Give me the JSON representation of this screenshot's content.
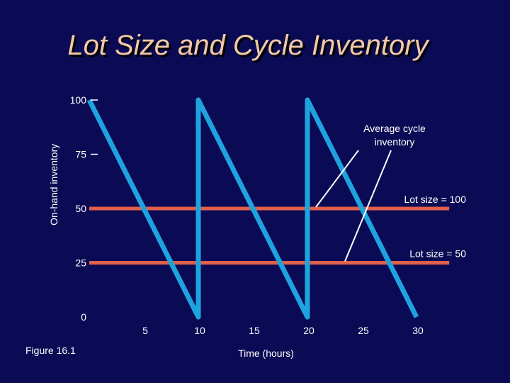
{
  "slide": {
    "title": "Lot Size and Cycle Inventory",
    "figure_label": "Figure 16.1"
  },
  "colors": {
    "background": "#0b0b55",
    "title": "#f3c9a6",
    "sawtooth": "#1ea3df",
    "average_line": "#e0604a",
    "text": "#ffffff"
  },
  "chart_data": {
    "type": "line",
    "xlabel": "Time (hours)",
    "ylabel": "On-hand inventory",
    "xlim": [
      0,
      33
    ],
    "ylim": [
      0,
      100
    ],
    "x_ticks": [
      5,
      10,
      15,
      20,
      25,
      30
    ],
    "y_ticks": [
      0,
      25,
      50,
      75,
      100
    ],
    "series": [
      {
        "values_x": [
          0,
          10,
          10,
          20,
          20,
          30
        ],
        "values_y": [
          100,
          0,
          100,
          0,
          100,
          0
        ]
      }
    ],
    "reference_lines": [
      {
        "y": 50,
        "label": "Lot size = 100"
      },
      {
        "y": 25,
        "label": "Lot size = 50"
      }
    ],
    "annotation": {
      "text_lines": [
        "Average cycle",
        "inventory"
      ],
      "targets": [
        "Lot size = 100",
        "Lot size = 50"
      ]
    }
  }
}
